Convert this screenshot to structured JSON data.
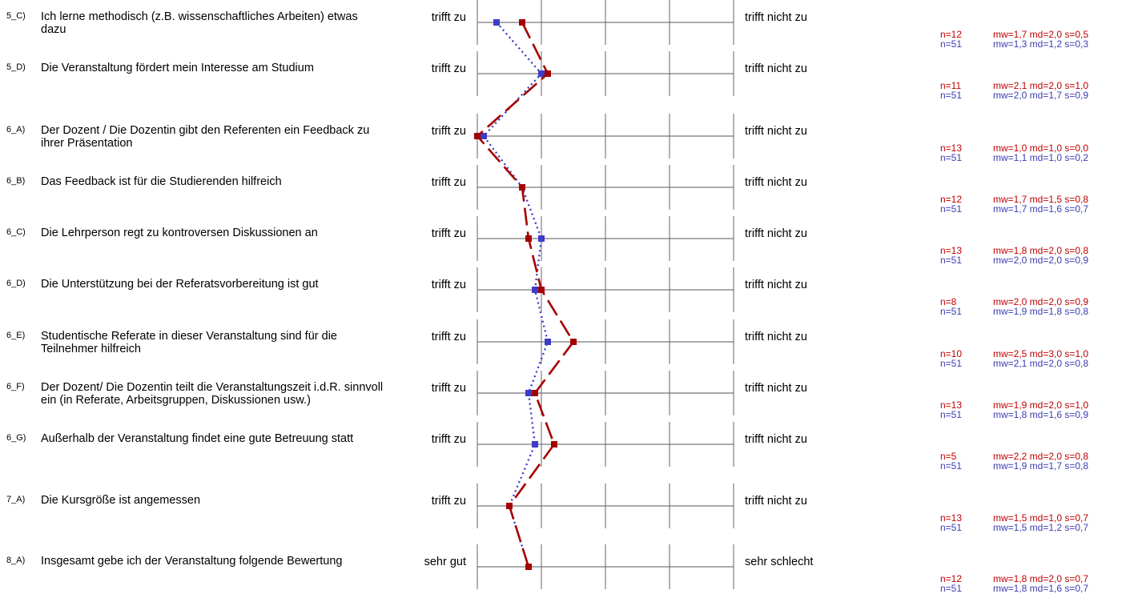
{
  "chart_data": {
    "type": "line",
    "orientation": "vertical-profile",
    "scale": [
      1,
      5
    ],
    "grid": true,
    "series": [
      {
        "color": "#a50000",
        "line_style": "dashed"
      },
      {
        "color": "#3c3cc8",
        "line_style": "dotted"
      }
    ],
    "items": [
      {
        "code": "5_C)",
        "text": "Ich lerne methodisch (z.B. wissenschaftliches Arbeiten) etwas dazu",
        "left": "trifft zu",
        "right": "trifft nicht zu",
        "a": {
          "n": "n=12",
          "stats": "mw=1,7 md=2,0 s=0,5",
          "mw": 1.7
        },
        "b": {
          "n": "n=51",
          "stats": "mw=1,3 md=1,2 s=0,3",
          "mw": 1.3
        }
      },
      {
        "code": "5_D)",
        "text": "Die Veranstaltung fördert mein Interesse am Studium",
        "left": "trifft zu",
        "right": "trifft nicht zu",
        "a": {
          "n": "n=11",
          "stats": "mw=2,1 md=2,0 s=1,0",
          "mw": 2.1
        },
        "b": {
          "n": "n=51",
          "stats": "mw=2,0 md=1,7 s=0,9",
          "mw": 2.0
        }
      },
      {
        "code": "6_A)",
        "text": "Der Dozent / Die Dozentin gibt den Referenten ein Feedback zu ihrer Präsentation",
        "left": "trifft zu",
        "right": "trifft nicht zu",
        "a": {
          "n": "n=13",
          "stats": "mw=1,0 md=1,0 s=0,0",
          "mw": 1.0
        },
        "b": {
          "n": "n=51",
          "stats": "mw=1,1 md=1,0 s=0,2",
          "mw": 1.1
        }
      },
      {
        "code": "6_B)",
        "text": "Das Feedback ist für die Studierenden hilfreich",
        "left": "trifft zu",
        "right": "trifft nicht zu",
        "a": {
          "n": "n=12",
          "stats": "mw=1,7 md=1,5 s=0,8",
          "mw": 1.7
        },
        "b": {
          "n": "n=51",
          "stats": "mw=1,7 md=1,6 s=0,7",
          "mw": 1.7
        }
      },
      {
        "code": "6_C)",
        "text": "Die Lehrperson regt zu kontroversen Diskussionen an",
        "left": "trifft zu",
        "right": "trifft nicht zu",
        "a": {
          "n": "n=13",
          "stats": "mw=1,8 md=2,0 s=0,8",
          "mw": 1.8
        },
        "b": {
          "n": "n=51",
          "stats": "mw=2,0 md=2,0 s=0,9",
          "mw": 2.0
        }
      },
      {
        "code": "6_D)",
        "text": "Die Unterstützung bei der Referatsvorbereitung ist gut",
        "left": "trifft zu",
        "right": "trifft nicht zu",
        "a": {
          "n": "n=8",
          "stats": "mw=2,0 md=2,0 s=0,9",
          "mw": 2.0
        },
        "b": {
          "n": "n=51",
          "stats": "mw=1,9 md=1,8 s=0,8",
          "mw": 1.9
        }
      },
      {
        "code": "6_E)",
        "text": "Studentische Referate in dieser Veranstaltung sind für die Teilnehmer hilfreich",
        "left": "trifft zu",
        "right": "trifft nicht zu",
        "a": {
          "n": "n=10",
          "stats": "mw=2,5 md=3,0 s=1,0",
          "mw": 2.5
        },
        "b": {
          "n": "n=51",
          "stats": "mw=2,1 md=2,0 s=0,8",
          "mw": 2.1
        }
      },
      {
        "code": "6_F)",
        "text": "Der Dozent/ Die Dozentin teilt die Veranstaltungszeit i.d.R. sinnvoll ein (in Referate, Arbeitsgruppen, Diskussionen usw.)",
        "left": "trifft zu",
        "right": "trifft nicht zu",
        "a": {
          "n": "n=13",
          "stats": "mw=1,9 md=2,0 s=1,0",
          "mw": 1.9
        },
        "b": {
          "n": "n=51",
          "stats": "mw=1,8 md=1,6 s=0,9",
          "mw": 1.8
        }
      },
      {
        "code": "6_G)",
        "text": "Außerhalb der Veranstaltung findet eine gute Betreuung statt",
        "left": "trifft zu",
        "right": "trifft nicht zu",
        "a": {
          "n": "n=5",
          "stats": "mw=2,2 md=2,0 s=0,8",
          "mw": 2.2
        },
        "b": {
          "n": "n=51",
          "stats": "mw=1,9 md=1,7 s=0,8",
          "mw": 1.9
        }
      },
      {
        "code": "7_A)",
        "text": "Die Kursgröße ist angemessen",
        "left": "trifft zu",
        "right": "trifft nicht zu",
        "a": {
          "n": "n=13",
          "stats": "mw=1,5 md=1,0 s=0,7",
          "mw": 1.5
        },
        "b": {
          "n": "n=51",
          "stats": "mw=1,5 md=1,2 s=0,7",
          "mw": 1.5
        }
      },
      {
        "code": "8_A)",
        "text": "Insgesamt gebe ich der Veranstaltung folgende Bewertung",
        "left": "sehr gut",
        "right": "sehr schlecht",
        "a": {
          "n": "n=12",
          "stats": "mw=1,8 md=2,0 s=0,7",
          "mw": 1.8
        },
        "b": {
          "n": "n=51",
          "stats": "mw=1,8 md=1,6 s=0,7",
          "mw": 1.8
        }
      }
    ]
  }
}
